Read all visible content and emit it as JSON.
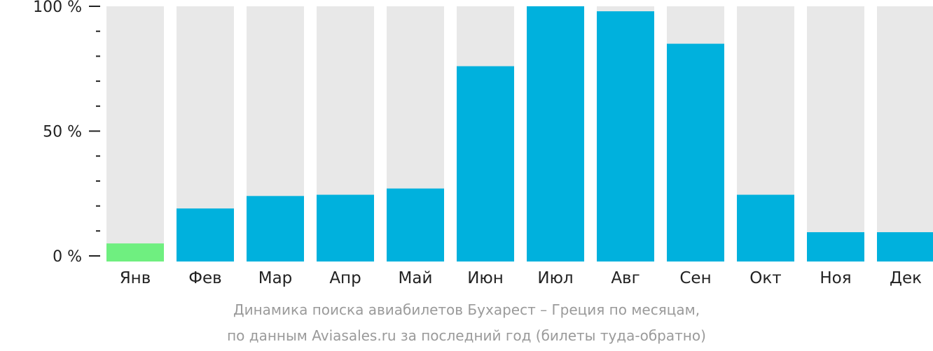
{
  "chart_data": {
    "type": "bar",
    "categories": [
      "Янв",
      "Фев",
      "Мар",
      "Апр",
      "Май",
      "Июн",
      "Июл",
      "Авг",
      "Сен",
      "Окт",
      "Ноя",
      "Дек"
    ],
    "values": [
      5,
      19,
      24,
      24.5,
      27,
      76,
      100,
      98,
      85,
      24.5,
      9.5,
      9.5
    ],
    "ylim": [
      0,
      100
    ],
    "y_ticks": [
      {
        "value": 0,
        "label": "0 %"
      },
      {
        "value": 50,
        "label": "50 %"
      },
      {
        "value": 100,
        "label": "100 %"
      }
    ],
    "caption_line1": "Динамика поиска авиабилетов Бухарест – Греция по месяцам,",
    "caption_line2": "по данным Aviasales.ru за последний год (билеты туда-обратно)",
    "colors": {
      "bar": "#00b1dd",
      "highlight_bar": "#6fef80",
      "track": "#e8e8e8",
      "axis": "#222222",
      "caption": "#9a9a9a"
    },
    "highlight_index": 0
  }
}
